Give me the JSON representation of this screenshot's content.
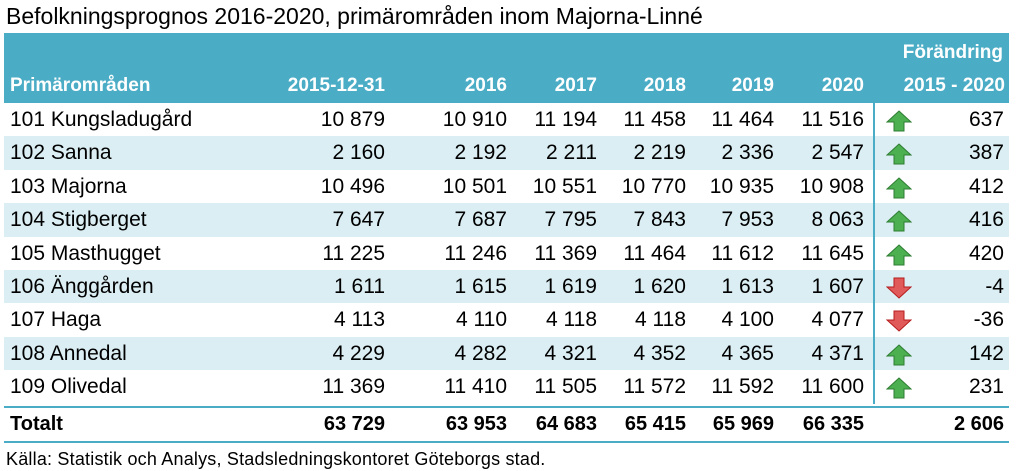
{
  "title": "Befolkningsprognos 2016-2020, primärområden inom Majorna-Linné",
  "source": "Källa: Statistik och Analys, Stadsledningskontoret Göteborgs stad.",
  "colors": {
    "header": "#4bacc6",
    "band": "#daeef3",
    "up": "#4caf50",
    "down": "#e05a5a"
  },
  "chart_data": {
    "type": "table",
    "columns": [
      "Primärområden",
      "2015-12-31",
      "2016",
      "2017",
      "2018",
      "2019",
      "2020",
      "Förändring 2015 - 2020"
    ],
    "change_header_line1": "Förändring",
    "change_header_line2": "2015 - 2020",
    "rows": [
      {
        "name": "101 Kungsladugård",
        "values": [
          "10 879",
          "10 910",
          "11 194",
          "11 458",
          "11 464",
          "11 516"
        ],
        "change": "637",
        "trend": "up"
      },
      {
        "name": "102 Sanna",
        "values": [
          "2 160",
          "2 192",
          "2 211",
          "2 219",
          "2 336",
          "2 547"
        ],
        "change": "387",
        "trend": "up"
      },
      {
        "name": "103 Majorna",
        "values": [
          "10 496",
          "10 501",
          "10 551",
          "10 770",
          "10 935",
          "10 908"
        ],
        "change": "412",
        "trend": "up"
      },
      {
        "name": "104 Stigberget",
        "values": [
          "7 647",
          "7 687",
          "7 795",
          "7 843",
          "7 953",
          "8 063"
        ],
        "change": "416",
        "trend": "up"
      },
      {
        "name": "105 Masthugget",
        "values": [
          "11 225",
          "11 246",
          "11 369",
          "11 464",
          "11 612",
          "11 645"
        ],
        "change": "420",
        "trend": "up"
      },
      {
        "name": "106 Änggården",
        "values": [
          "1 611",
          "1 615",
          "1 619",
          "1 620",
          "1 613",
          "1 607"
        ],
        "change": "-4",
        "trend": "down"
      },
      {
        "name": "107 Haga",
        "values": [
          "4 113",
          "4 110",
          "4 118",
          "4 118",
          "4 100",
          "4 077"
        ],
        "change": "-36",
        "trend": "down"
      },
      {
        "name": "108 Annedal",
        "values": [
          "4 229",
          "4 282",
          "4 321",
          "4 352",
          "4 365",
          "4 371"
        ],
        "change": "142",
        "trend": "up"
      },
      {
        "name": "109 Olivedal",
        "values": [
          "11 369",
          "11 410",
          "11 505",
          "11 572",
          "11 592",
          "11 600"
        ],
        "change": "231",
        "trend": "up"
      }
    ],
    "total": {
      "name": "Totalt",
      "values": [
        "63 729",
        "63 953",
        "64 683",
        "65 415",
        "65 969",
        "66 335"
      ],
      "change": "2 606"
    }
  }
}
